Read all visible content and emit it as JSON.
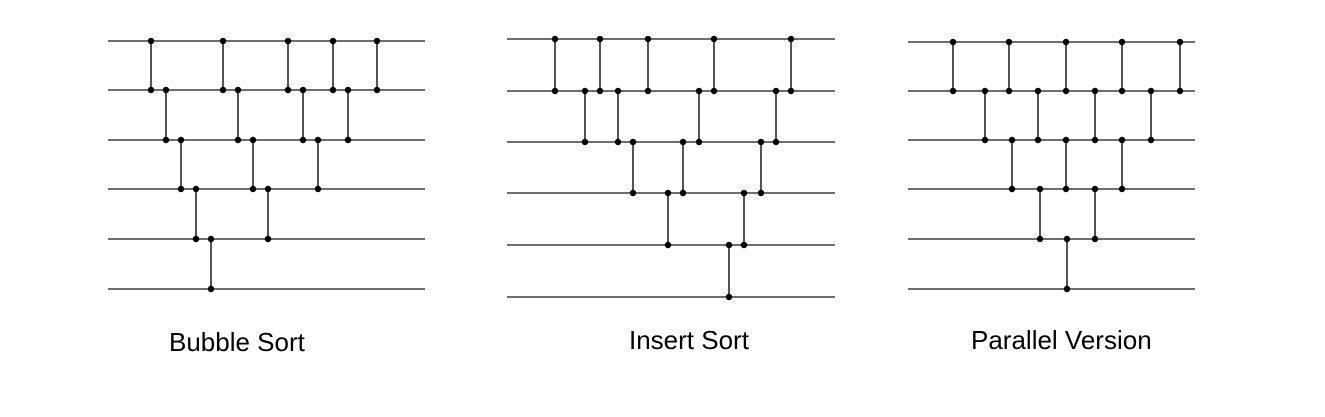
{
  "colors": {
    "wire": "#6e6e6e",
    "comparator": "#555555",
    "node": "#000000"
  },
  "networks": [
    {
      "caption": "Bubble Sort",
      "wires": 6,
      "comparators": [
        [
          0,
          1
        ],
        [
          1,
          2
        ],
        [
          2,
          3
        ],
        [
          3,
          4
        ],
        [
          4,
          5
        ],
        [
          0,
          1
        ],
        [
          1,
          2
        ],
        [
          2,
          3
        ],
        [
          3,
          4
        ],
        [
          0,
          1
        ],
        [
          1,
          2
        ],
        [
          2,
          3
        ],
        [
          0,
          1
        ],
        [
          1,
          2
        ],
        [
          0,
          1
        ]
      ]
    },
    {
      "caption": "Insert Sort",
      "wires": 6,
      "comparators": [
        [
          0,
          1
        ],
        [
          1,
          2
        ],
        [
          0,
          1
        ],
        [
          1,
          2
        ],
        [
          2,
          3
        ],
        [
          0,
          1
        ],
        [
          3,
          4
        ],
        [
          2,
          3
        ],
        [
          1,
          2
        ],
        [
          0,
          1
        ],
        [
          4,
          5
        ],
        [
          3,
          4
        ],
        [
          2,
          3
        ],
        [
          1,
          2
        ],
        [
          0,
          1
        ]
      ]
    },
    {
      "caption": "Parallel Version",
      "wires": 6,
      "comparators": [
        [
          0,
          1
        ],
        [
          1,
          2
        ],
        [
          2,
          3
        ],
        [
          3,
          4
        ],
        [
          4,
          5
        ],
        [
          0,
          1
        ],
        [
          1,
          2
        ],
        [
          2,
          3
        ],
        [
          3,
          4
        ],
        [
          0,
          1
        ],
        [
          1,
          2
        ],
        [
          2,
          3
        ],
        [
          0,
          1
        ],
        [
          1,
          2
        ],
        [
          0,
          1
        ]
      ]
    }
  ]
}
